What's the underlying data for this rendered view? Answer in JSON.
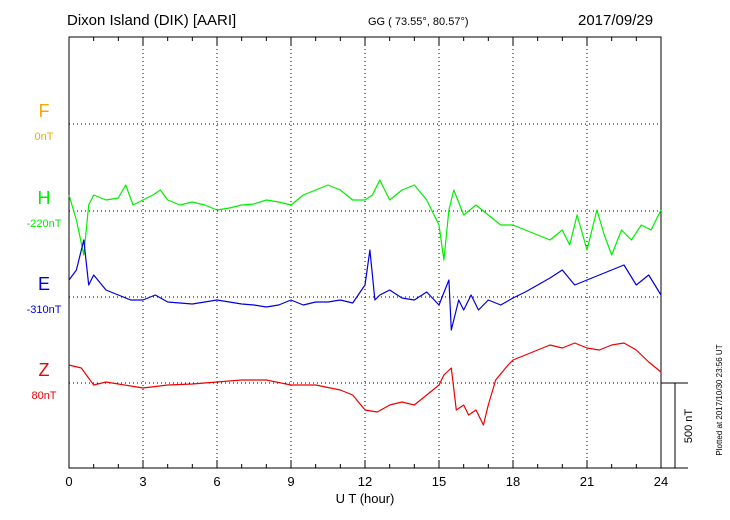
{
  "header": {
    "station": "Dixon Island (DIK)  [AARI]",
    "coords": "GG ( 73.55°,  80.57°)",
    "date": "2017/09/29"
  },
  "chart_data": {
    "type": "line",
    "xlabel": "U T (hour)",
    "xlim": [
      0,
      24
    ],
    "xticks": [
      0,
      3,
      6,
      9,
      12,
      15,
      18,
      21,
      24
    ],
    "grid": true,
    "scale_bar": "500 nT",
    "footer": "Plotted at 2017/10/30 23:56 UT",
    "series": [
      {
        "name": "F",
        "baseline": "0nT",
        "color": "#f5a800",
        "points": []
      },
      {
        "name": "H",
        "baseline": "-220nT",
        "color": "#00ee00",
        "points": [
          [
            0,
            195
          ],
          [
            0.3,
            220
          ],
          [
            0.6,
            255
          ],
          [
            0.8,
            205
          ],
          [
            1,
            195
          ],
          [
            1.5,
            200
          ],
          [
            2,
            198
          ],
          [
            2.3,
            185
          ],
          [
            2.6,
            205
          ],
          [
            3,
            200
          ],
          [
            3.4,
            195
          ],
          [
            3.7,
            190
          ],
          [
            4,
            200
          ],
          [
            4.5,
            205
          ],
          [
            5,
            202
          ],
          [
            5.5,
            205
          ],
          [
            6,
            210
          ],
          [
            6.5,
            208
          ],
          [
            7,
            205
          ],
          [
            7.5,
            204
          ],
          [
            8,
            200
          ],
          [
            8.5,
            202
          ],
          [
            9,
            205
          ],
          [
            9.5,
            195
          ],
          [
            10,
            190
          ],
          [
            10.5,
            185
          ],
          [
            11,
            190
          ],
          [
            11.5,
            200
          ],
          [
            12,
            200
          ],
          [
            12.3,
            195
          ],
          [
            12.6,
            180
          ],
          [
            13,
            200
          ],
          [
            13.5,
            190
          ],
          [
            14,
            185
          ],
          [
            14.5,
            200
          ],
          [
            15,
            225
          ],
          [
            15.2,
            260
          ],
          [
            15.4,
            210
          ],
          [
            15.6,
            190
          ],
          [
            16,
            215
          ],
          [
            16.5,
            205
          ],
          [
            17,
            215
          ],
          [
            17.5,
            225
          ],
          [
            18,
            225
          ],
          [
            18.5,
            230
          ],
          [
            19,
            235
          ],
          [
            19.5,
            240
          ],
          [
            20,
            230
          ],
          [
            20.3,
            245
          ],
          [
            20.6,
            215
          ],
          [
            21,
            250
          ],
          [
            21.4,
            210
          ],
          [
            21.7,
            235
          ],
          [
            22,
            255
          ],
          [
            22.4,
            230
          ],
          [
            22.8,
            240
          ],
          [
            23.2,
            225
          ],
          [
            23.6,
            230
          ],
          [
            24,
            210
          ]
        ]
      },
      {
        "name": "E",
        "baseline": "-310nT",
        "color": "#0000dd",
        "points": [
          [
            0,
            280
          ],
          [
            0.3,
            270
          ],
          [
            0.6,
            240
          ],
          [
            0.8,
            285
          ],
          [
            1,
            275
          ],
          [
            1.5,
            290
          ],
          [
            2,
            295
          ],
          [
            2.5,
            300
          ],
          [
            3,
            300
          ],
          [
            3.5,
            295
          ],
          [
            4,
            302
          ],
          [
            4.5,
            303
          ],
          [
            5,
            304
          ],
          [
            5.5,
            302
          ],
          [
            6,
            300
          ],
          [
            6.5,
            302
          ],
          [
            7,
            304
          ],
          [
            7.5,
            305
          ],
          [
            8,
            307
          ],
          [
            8.5,
            305
          ],
          [
            9,
            300
          ],
          [
            9.5,
            305
          ],
          [
            10,
            302
          ],
          [
            10.5,
            302
          ],
          [
            11,
            300
          ],
          [
            11.5,
            303
          ],
          [
            12,
            285
          ],
          [
            12.2,
            250
          ],
          [
            12.4,
            300
          ],
          [
            12.6,
            295
          ],
          [
            13,
            290
          ],
          [
            13.5,
            298
          ],
          [
            14,
            300
          ],
          [
            14.5,
            292
          ],
          [
            15,
            305
          ],
          [
            15.4,
            280
          ],
          [
            15.5,
            330
          ],
          [
            15.8,
            300
          ],
          [
            16,
            310
          ],
          [
            16.3,
            295
          ],
          [
            16.6,
            310
          ],
          [
            17,
            300
          ],
          [
            17.5,
            305
          ],
          [
            18,
            298
          ],
          [
            18.5,
            292
          ],
          [
            19,
            285
          ],
          [
            19.5,
            278
          ],
          [
            20,
            270
          ],
          [
            20.5,
            285
          ],
          [
            21,
            280
          ],
          [
            21.5,
            275
          ],
          [
            22,
            270
          ],
          [
            22.5,
            265
          ],
          [
            23,
            285
          ],
          [
            23.5,
            275
          ],
          [
            24,
            295
          ]
        ]
      },
      {
        "name": "Z",
        "baseline": "80nT",
        "color": "#ee0000",
        "points": [
          [
            0,
            365
          ],
          [
            0.5,
            368
          ],
          [
            1,
            385
          ],
          [
            1.5,
            382
          ],
          [
            2,
            384
          ],
          [
            3,
            388
          ],
          [
            4,
            385
          ],
          [
            5,
            384
          ],
          [
            6,
            382
          ],
          [
            7,
            380
          ],
          [
            8,
            380
          ],
          [
            9,
            385
          ],
          [
            10,
            385
          ],
          [
            11,
            390
          ],
          [
            11.5,
            395
          ],
          [
            12,
            410
          ],
          [
            12.5,
            412
          ],
          [
            13,
            405
          ],
          [
            13.5,
            402
          ],
          [
            14,
            405
          ],
          [
            14.5,
            395
          ],
          [
            15,
            385
          ],
          [
            15.2,
            375
          ],
          [
            15.5,
            368
          ],
          [
            15.7,
            410
          ],
          [
            16,
            405
          ],
          [
            16.2,
            415
          ],
          [
            16.5,
            410
          ],
          [
            16.8,
            425
          ],
          [
            17,
            405
          ],
          [
            17.3,
            380
          ],
          [
            17.8,
            365
          ],
          [
            18,
            360
          ],
          [
            18.5,
            355
          ],
          [
            19,
            350
          ],
          [
            19.5,
            345
          ],
          [
            20,
            348
          ],
          [
            20.5,
            343
          ],
          [
            21,
            348
          ],
          [
            21.5,
            350
          ],
          [
            22,
            345
          ],
          [
            22.5,
            343
          ],
          [
            23,
            350
          ],
          [
            23.5,
            362
          ],
          [
            24,
            372
          ]
        ]
      }
    ]
  }
}
